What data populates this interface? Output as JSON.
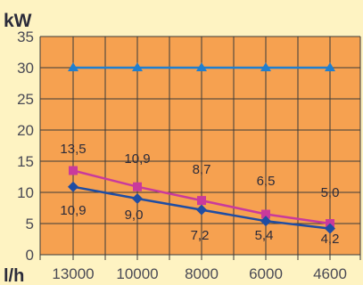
{
  "chart_data": {
    "type": "line",
    "y_unit": "kW",
    "x_unit": "l/h",
    "categories": [
      "13000",
      "10000",
      "8000",
      "6000",
      "4600"
    ],
    "ylim": [
      0,
      35
    ],
    "yticks": [
      "35",
      "30",
      "25",
      "20",
      "15",
      "10",
      "5",
      "0"
    ],
    "grid": true,
    "series": [
      {
        "values": [
          30,
          30,
          30,
          30,
          30
        ],
        "color": "#1f7fd0",
        "marker": "triangle",
        "labels": []
      },
      {
        "values": [
          13.5,
          10.9,
          8.7,
          6.5,
          5.0
        ],
        "color": "#c93a9c",
        "marker": "square",
        "labels": [
          "13,5",
          "10,9",
          "8,7",
          "6,5",
          "5,0"
        ]
      },
      {
        "values": [
          10.9,
          9.0,
          7.2,
          5.4,
          4.2
        ],
        "color": "#1f4da3",
        "marker": "diamond",
        "labels": [
          "10,9",
          "9,0",
          "7,2",
          "5,4",
          "4,2"
        ]
      }
    ],
    "plot_background": "#f6a150",
    "grid_color": "#3a3a3a",
    "page_background": "#fef3c2"
  }
}
